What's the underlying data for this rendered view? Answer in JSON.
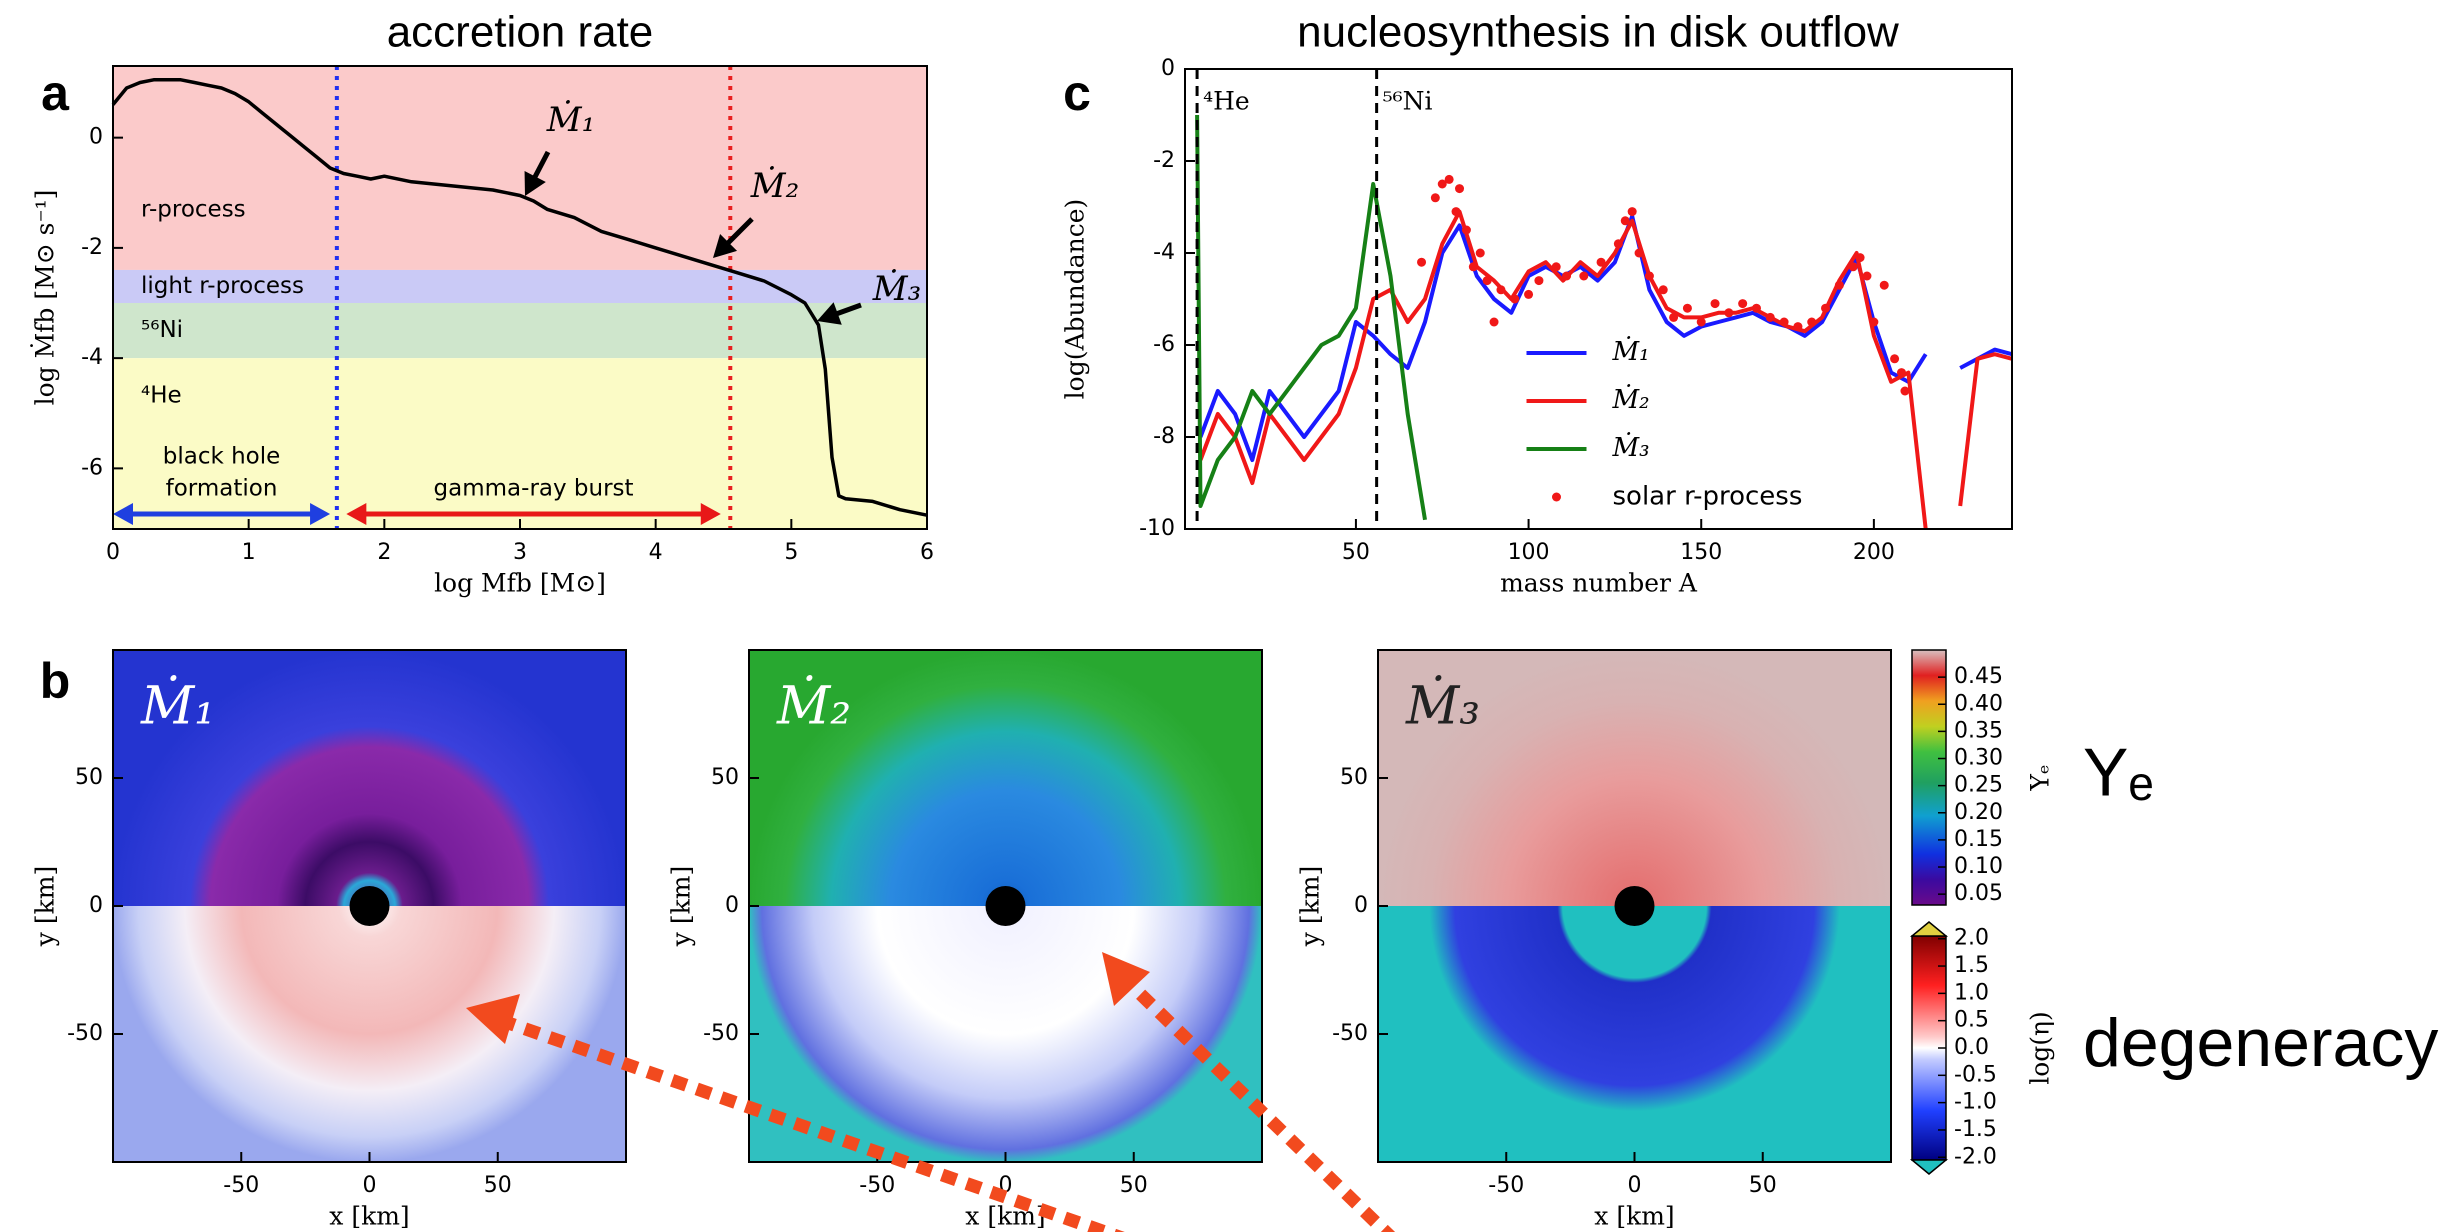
{
  "chart_data": [
    {
      "type": "line",
      "label": "a",
      "title": "accretion rate",
      "xlabel": "log Mfb [M⊙]",
      "ylabel": "log Ṁfb [M⊙ s⁻¹]",
      "xlim": [
        0,
        6
      ],
      "ylim": [
        -7.1,
        1.3
      ],
      "xticks": [
        0,
        1,
        2,
        3,
        4,
        5,
        6
      ],
      "yticks": [
        -6,
        -4,
        -2,
        0
      ],
      "bands": [
        {
          "label": "r-process",
          "range": [
            -2.4,
            1.3
          ],
          "color": "#fbcaca"
        },
        {
          "label": "light r-process",
          "range": [
            -3,
            -2.4
          ],
          "color": "#cacaf6"
        },
        {
          "label": "⁵⁶Ni",
          "range": [
            -4,
            -3
          ],
          "color": "#cfe6cc"
        },
        {
          "label": "⁴He",
          "range": [
            -7.1,
            -4
          ],
          "color": "#fbfbc6"
        }
      ],
      "vlines": [
        {
          "value": 1.65,
          "color": "#2030f0"
        },
        {
          "value": 4.55,
          "color": "#e82020"
        }
      ],
      "spans": [
        {
          "label": [
            "black hole",
            "formation"
          ],
          "range": [
            0,
            1.6
          ],
          "color": "#1f3fe0"
        },
        {
          "label": [
            "gamma-ray burst"
          ],
          "range": [
            1.72,
            4.48
          ],
          "color": "#e81818"
        }
      ],
      "annotations": [
        "Ṁ₁",
        "Ṁ₂",
        "Ṁ₃"
      ],
      "x": [
        0,
        0.1,
        0.2,
        0.3,
        0.4,
        0.5,
        0.6,
        0.7,
        0.8,
        0.9,
        1.0,
        1.1,
        1.2,
        1.3,
        1.4,
        1.5,
        1.6,
        1.65,
        1.7,
        1.8,
        1.9,
        2.0,
        2.2,
        2.4,
        2.6,
        2.8,
        3.0,
        3.1,
        3.2,
        3.4,
        3.6,
        3.8,
        4.0,
        4.2,
        4.4,
        4.6,
        4.8,
        5.0,
        5.1,
        5.15,
        5.2,
        5.25,
        5.3,
        5.35,
        5.4,
        5.6,
        5.8,
        6.0
      ],
      "series": [
        {
          "color": "#000000",
          "values": [
            0.6,
            0.9,
            1.0,
            1.05,
            1.05,
            1.05,
            1.0,
            0.95,
            0.9,
            0.8,
            0.65,
            0.45,
            0.25,
            0.05,
            -0.15,
            -0.35,
            -0.55,
            -0.6,
            -0.65,
            -0.7,
            -0.75,
            -0.7,
            -0.8,
            -0.85,
            -0.9,
            -0.95,
            -1.05,
            -1.15,
            -1.3,
            -1.45,
            -1.7,
            -1.85,
            -2.0,
            -2.15,
            -2.3,
            -2.45,
            -2.6,
            -2.85,
            -3.0,
            -3.2,
            -3.4,
            -4.2,
            -5.8,
            -6.5,
            -6.55,
            -6.6,
            -6.75,
            -6.85
          ]
        }
      ]
    },
    {
      "type": "line",
      "label": "c",
      "title": "nucleosynthesis in disk outflow",
      "xlabel": "mass number A",
      "ylabel": "log(Abundance)",
      "xlim": [
        0.5,
        240
      ],
      "ylim": [
        -10,
        0
      ],
      "xticks": [
        50,
        100,
        150,
        200
      ],
      "yticks": [
        -10,
        -8,
        -6,
        -4,
        -2,
        0
      ],
      "vlines": [
        {
          "value": 4,
          "label": "⁴He"
        },
        {
          "value": 56,
          "label": "⁵⁶Ni"
        }
      ],
      "legend": "lower center",
      "x": [
        4,
        5,
        10,
        15,
        20,
        25,
        30,
        35,
        40,
        45,
        50,
        55,
        60,
        65,
        70,
        75,
        80,
        85,
        90,
        95,
        100,
        105,
        110,
        115,
        120,
        125,
        130,
        135,
        140,
        145,
        150,
        155,
        160,
        165,
        170,
        175,
        180,
        185,
        190,
        195,
        200,
        205,
        210,
        215,
        220,
        225,
        230,
        235,
        240
      ],
      "series": [
        {
          "name": "Ṁ₁",
          "color": "#1a1aff",
          "values": [
            null,
            -8.0,
            -7.0,
            -7.5,
            -8.5,
            -7.0,
            -7.5,
            -8.0,
            -7.5,
            -7.0,
            -5.5,
            -5.8,
            -6.2,
            -6.5,
            -5.5,
            -4.0,
            -3.4,
            -4.5,
            -5.0,
            -5.3,
            -4.5,
            -4.3,
            -4.5,
            -4.3,
            -4.6,
            -4.2,
            -3.2,
            -4.8,
            -5.5,
            -5.8,
            -5.6,
            -5.5,
            -5.4,
            -5.3,
            -5.5,
            -5.6,
            -5.8,
            -5.5,
            -4.8,
            -4.1,
            -5.5,
            -6.6,
            -6.8,
            -6.2,
            null,
            -6.5,
            -6.3,
            -6.1,
            -6.2
          ]
        },
        {
          "name": "Ṁ₂",
          "color": "#f01818",
          "values": [
            null,
            -8.5,
            -7.5,
            -8.0,
            -9.0,
            -7.5,
            -8.0,
            -8.5,
            -8.0,
            -7.5,
            -6.5,
            -5.0,
            -4.8,
            -5.5,
            -5.0,
            -3.8,
            -3.1,
            -4.3,
            -4.6,
            -5.0,
            -4.4,
            -4.2,
            -4.6,
            -4.2,
            -4.5,
            -4.0,
            -3.3,
            -4.5,
            -5.2,
            -5.4,
            -5.4,
            -5.3,
            -5.3,
            -5.2,
            -5.4,
            -5.6,
            -5.7,
            -5.4,
            -4.6,
            -4.0,
            -5.8,
            -6.8,
            -6.6,
            -10,
            null,
            -9.5,
            -6.3,
            -6.2,
            -6.3
          ]
        },
        {
          "name": "Ṁ₃",
          "color": "#168016",
          "values": [
            -1.0,
            -9.5,
            -8.5,
            -8.0,
            -7.0,
            -7.5,
            -7.0,
            -6.5,
            -6.0,
            -5.8,
            -5.2,
            -2.5,
            -4.5,
            -7.5,
            -9.8,
            null,
            null,
            null,
            null,
            null,
            null,
            null,
            null,
            null,
            null,
            null,
            null,
            null,
            null,
            null,
            null,
            null,
            null,
            null,
            null,
            null,
            null,
            null,
            null,
            null,
            null,
            null,
            null,
            null,
            null,
            null,
            null,
            null,
            null
          ]
        },
        {
          "name": "solar r-process",
          "color": "#f01818",
          "style": "dots",
          "x": [
            69,
            73,
            75,
            77,
            79,
            80,
            82,
            84,
            86,
            88,
            90,
            92,
            96,
            100,
            103,
            108,
            111,
            116,
            121,
            126,
            128,
            130,
            132,
            135,
            139,
            142,
            146,
            150,
            154,
            158,
            162,
            166,
            170,
            174,
            178,
            182,
            186,
            190,
            194,
            196,
            198,
            200,
            203,
            206,
            208,
            209
          ],
          "values": [
            -4.2,
            -2.8,
            -2.5,
            -2.4,
            -3.1,
            -2.6,
            -3.5,
            -4.3,
            -4.0,
            -4.6,
            -5.5,
            -4.8,
            -5.0,
            -4.9,
            -4.6,
            -4.3,
            -4.5,
            -4.5,
            -4.2,
            -3.8,
            -3.3,
            -3.1,
            -4.0,
            -4.5,
            -4.8,
            -5.4,
            -5.2,
            -5.5,
            -5.1,
            -5.3,
            -5.1,
            -5.2,
            -5.4,
            -5.5,
            -5.6,
            -5.5,
            -5.2,
            -4.7,
            -4.3,
            -4.1,
            -4.5,
            -5.5,
            -4.7,
            -6.3,
            -6.6,
            -7.0
          ]
        }
      ]
    },
    {
      "type": "heatmap",
      "label": "b",
      "xlabel": "x [km]",
      "ylabel": "y [km]",
      "xlim": [
        -100,
        100
      ],
      "ylim": [
        -100,
        100
      ],
      "xticks": [
        -50,
        0,
        50
      ],
      "yticks": [
        -50,
        0,
        50
      ],
      "panels": [
        "Ṁ₁",
        "Ṁ₂",
        "Ṁ₃"
      ],
      "colorbars": [
        {
          "label": "Yₑ",
          "title": "Yₑ",
          "lim": [
            0.03,
            0.5
          ],
          "ticks": [
            0.05,
            {
              "value": 0.1,
              "label": "0.10"
            },
            0.15,
            {
              "value": 0.2,
              "label": "0.20"
            },
            0.25,
            {
              "value": 0.3,
              "label": "0.30"
            },
            0.35,
            {
              "value": 0.4,
              "label": "0.40"
            },
            0.45
          ]
        },
        {
          "label": "log(η)",
          "title": "degeneracy",
          "lim": [
            -2.05,
            2.05
          ],
          "ticks": [
            {
              "value": -2,
              "label": "-2.0"
            },
            -1.5,
            {
              "value": -1,
              "label": "-1.0"
            },
            -0.5,
            {
              "value": 0,
              "label": "0.0"
            },
            0.5,
            {
              "value": 1,
              "label": "1.0"
            },
            1.5,
            {
              "value": 2,
              "label": "2.0"
            }
          ]
        }
      ]
    }
  ]
}
